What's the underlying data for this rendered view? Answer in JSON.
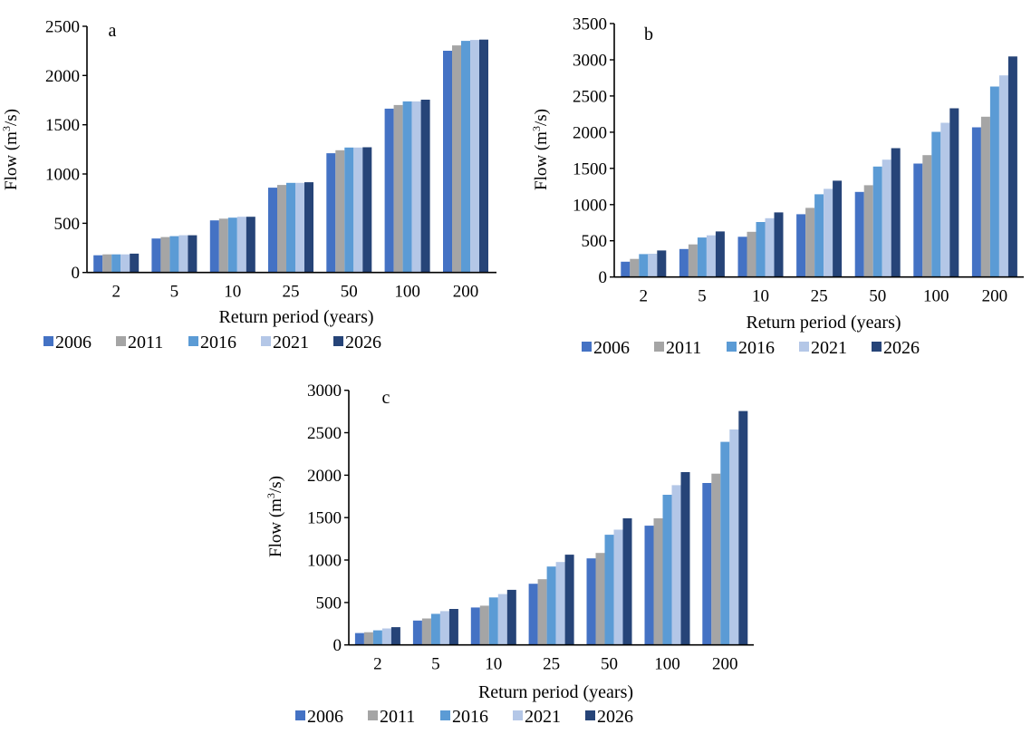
{
  "legend": {
    "series_colors": [
      "#4472C4",
      "#A5A5A5",
      "#5B9BD5",
      "#B4C7E7",
      "#264478"
    ]
  },
  "chart_data": [
    {
      "type": "bar",
      "panel_label": "a",
      "title": "",
      "xlabel": "Return period (years)",
      "ylabel_main": "Flow (m",
      "ylabel_sup": "3",
      "ylabel_tail": "/s)",
      "categories": [
        "2",
        "5",
        "10",
        "25",
        "50",
        "100",
        "200"
      ],
      "ylim": [
        0,
        2500
      ],
      "yticks": [
        0,
        500,
        1000,
        1500,
        2000,
        2500
      ],
      "ytick_labels": [
        "0",
        "500",
        "1000",
        "1500",
        "2000",
        "2500"
      ],
      "legend_position": "bottom",
      "grid": false,
      "series": [
        {
          "name": "2006",
          "color": "#4472C4",
          "values": [
            175,
            345,
            529,
            861,
            1211,
            1664,
            2252
          ]
        },
        {
          "name": "2011",
          "color": "#A5A5A5",
          "values": [
            184,
            360,
            547,
            889,
            1241,
            1700,
            2306
          ]
        },
        {
          "name": "2016",
          "color": "#5B9BD5",
          "values": [
            184,
            369,
            557,
            910,
            1269,
            1737,
            2352
          ]
        },
        {
          "name": "2021",
          "color": "#B4C7E7",
          "values": [
            184,
            378,
            566,
            910,
            1269,
            1737,
            2361
          ]
        },
        {
          "name": "2026",
          "color": "#264478",
          "values": [
            191,
            378,
            566,
            916,
            1272,
            1755,
            2365
          ]
        }
      ]
    },
    {
      "type": "bar",
      "panel_label": "b",
      "title": "",
      "xlabel": "Return period (years)",
      "ylabel_main": "Flow (m",
      "ylabel_sup": "3",
      "ylabel_tail": "/s)",
      "categories": [
        "2",
        "5",
        "10",
        "25",
        "50",
        "100",
        "200"
      ],
      "ylim": [
        0,
        3500
      ],
      "yticks": [
        0,
        500,
        1000,
        1500,
        2000,
        2500,
        3000,
        3500
      ],
      "ytick_labels": [
        "0",
        "500",
        "1000",
        "1500",
        "2000",
        "2500",
        "3000",
        "3500"
      ],
      "legend_position": "bottom",
      "grid": false,
      "series": [
        {
          "name": "2006",
          "color": "#4472C4",
          "values": [
            212,
            387,
            555,
            867,
            1175,
            1567,
            2067
          ]
        },
        {
          "name": "2011",
          "color": "#A5A5A5",
          "values": [
            250,
            450,
            625,
            955,
            1267,
            1683,
            2213
          ]
        },
        {
          "name": "2016",
          "color": "#5B9BD5",
          "values": [
            317,
            546,
            759,
            1142,
            1525,
            2005,
            2630
          ]
        },
        {
          "name": "2021",
          "color": "#B4C7E7",
          "values": [
            322,
            575,
            812,
            1217,
            1621,
            2130,
            2784
          ]
        },
        {
          "name": "2026",
          "color": "#264478",
          "values": [
            367,
            630,
            892,
            1330,
            1780,
            2330,
            3046
          ]
        }
      ]
    },
    {
      "type": "bar",
      "panel_label": "c",
      "title": "",
      "xlabel": "Return period (years)",
      "ylabel_main": "Flow (m",
      "ylabel_sup": "3",
      "ylabel_tail": "/s)",
      "categories": [
        "2",
        "5",
        "10",
        "25",
        "50",
        "100",
        "200"
      ],
      "ylim": [
        0,
        3000
      ],
      "yticks": [
        0,
        500,
        1000,
        1500,
        2000,
        2500,
        3000
      ],
      "ytick_labels": [
        "0",
        "500",
        "1000",
        "1500",
        "2000",
        "2500",
        "3000"
      ],
      "legend_position": "bottom",
      "grid": false,
      "series": [
        {
          "name": "2006",
          "color": "#4472C4",
          "values": [
            140,
            287,
            441,
            721,
            1020,
            1405,
            1908
          ]
        },
        {
          "name": "2011",
          "color": "#A5A5A5",
          "values": [
            150,
            312,
            462,
            774,
            1084,
            1491,
            2018
          ]
        },
        {
          "name": "2016",
          "color": "#5B9BD5",
          "values": [
            172,
            366,
            559,
            924,
            1298,
            1769,
            2392
          ]
        },
        {
          "name": "2021",
          "color": "#B4C7E7",
          "values": [
            194,
            398,
            599,
            977,
            1358,
            1882,
            2539
          ]
        },
        {
          "name": "2026",
          "color": "#264478",
          "values": [
            209,
            424,
            649,
            1063,
            1491,
            2036,
            2756
          ]
        }
      ]
    }
  ]
}
